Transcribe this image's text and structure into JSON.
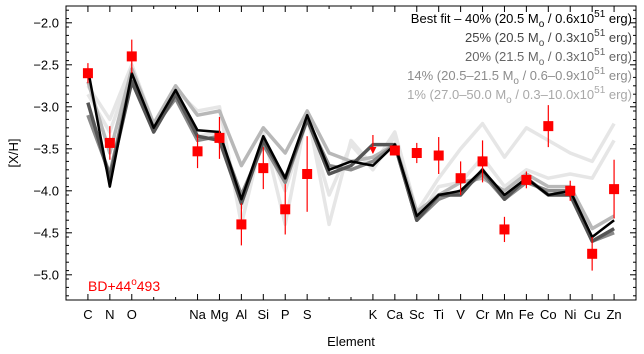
{
  "chart_data": {
    "type": "line",
    "xlabel": "Element",
    "ylabel": "[X/H]",
    "ylim": [
      -5.3,
      -1.8
    ],
    "yticks": [
      -2.0,
      -2.5,
      -3.0,
      -3.5,
      -4.0,
      -4.5,
      -5.0
    ],
    "ytick_labels": [
      "−2.0",
      "−2.5",
      "−3.0",
      "−3.5",
      "−4.0",
      "−4.5",
      "−5.0"
    ],
    "x_positions": [
      6,
      7,
      8,
      9,
      10,
      11,
      12,
      13,
      14,
      15,
      16,
      17,
      18,
      19,
      20,
      21,
      22,
      23,
      24,
      25,
      26,
      27,
      28,
      29,
      30
    ],
    "xlim": [
      5,
      31
    ],
    "elements": [
      {
        "label": "C",
        "z": 6
      },
      {
        "label": "N",
        "z": 7
      },
      {
        "label": "O",
        "z": 8
      },
      {
        "label": "Na",
        "z": 11
      },
      {
        "label": "Mg",
        "z": 12
      },
      {
        "label": "Al",
        "z": 13
      },
      {
        "label": "Si",
        "z": 14
      },
      {
        "label": "P",
        "z": 15
      },
      {
        "label": "S",
        "z": 16
      },
      {
        "label": "K",
        "z": 19
      },
      {
        "label": "Ca",
        "z": 20
      },
      {
        "label": "Sc",
        "z": 21
      },
      {
        "label": "Ti",
        "z": 22
      },
      {
        "label": "V",
        "z": 23
      },
      {
        "label": "Cr",
        "z": 24
      },
      {
        "label": "Mn",
        "z": 25
      },
      {
        "label": "Fe",
        "z": 26
      },
      {
        "label": "Co",
        "z": 27
      },
      {
        "label": "Ni",
        "z": 28
      },
      {
        "label": "Cu",
        "z": 29
      },
      {
        "label": "Zn",
        "z": 30
      }
    ],
    "observations": [
      {
        "z": 6,
        "y": -2.6,
        "err": 0.12,
        "upper_limit": false
      },
      {
        "z": 7,
        "y": -3.43,
        "err": 0.2,
        "upper_limit": false
      },
      {
        "z": 8,
        "y": -2.4,
        "err": 0.2,
        "upper_limit": false
      },
      {
        "z": 11,
        "y": -3.53,
        "err": 0.2,
        "upper_limit": false
      },
      {
        "z": 12,
        "y": -3.37,
        "err": 0.25,
        "upper_limit": false
      },
      {
        "z": 13,
        "y": -4.4,
        "err": 0.25,
        "upper_limit": false
      },
      {
        "z": 14,
        "y": -3.73,
        "err": 0.25,
        "upper_limit": false
      },
      {
        "z": 15,
        "y": -4.22,
        "err": 0.3,
        "upper_limit": false
      },
      {
        "z": 16,
        "y": -3.8,
        "err": 0.45,
        "upper_limit": false
      },
      {
        "z": 19,
        "y": -3.55,
        "err": 0.0,
        "upper_limit": true
      },
      {
        "z": 20,
        "y": -3.52,
        "err": 0.05,
        "upper_limit": false
      },
      {
        "z": 21,
        "y": -3.55,
        "err": 0.12,
        "upper_limit": false
      },
      {
        "z": 22,
        "y": -3.58,
        "err": 0.22,
        "upper_limit": false
      },
      {
        "z": 23,
        "y": -3.85,
        "err": 0.2,
        "upper_limit": false
      },
      {
        "z": 24,
        "y": -3.65,
        "err": 0.25,
        "upper_limit": false
      },
      {
        "z": 25,
        "y": -4.46,
        "err": 0.15,
        "upper_limit": false
      },
      {
        "z": 26,
        "y": -3.87,
        "err": 0.1,
        "upper_limit": false
      },
      {
        "z": 27,
        "y": -3.23,
        "err": 0.25,
        "upper_limit": false
      },
      {
        "z": 28,
        "y": -4.0,
        "err": 0.12,
        "upper_limit": false
      },
      {
        "z": 29,
        "y": -4.75,
        "err": 0.2,
        "upper_limit": false
      },
      {
        "z": 30,
        "y": -3.98,
        "err": 0.35,
        "upper_limit": false
      }
    ],
    "series": [
      {
        "name": "1% (27.0–50.0 Mₒ / 0.3–10.0x10⁵¹ erg)",
        "color": "#e6e6e6",
        "width": 3.5,
        "x": [
          6,
          7,
          8,
          9,
          10,
          11,
          12,
          13,
          14,
          15,
          16,
          17,
          18,
          19,
          20,
          21,
          22,
          23,
          24,
          25,
          26,
          27,
          28,
          29,
          30
        ],
        "values": [
          -2.75,
          -3.15,
          -2.5,
          -3.2,
          -2.8,
          -3.05,
          -3.0,
          -4.4,
          -3.3,
          -4.4,
          -3.05,
          -4.4,
          -3.4,
          -3.7,
          -3.3,
          -4.25,
          -3.85,
          -3.5,
          -3.2,
          -3.6,
          -3.25,
          -3.4,
          -3.55,
          -3.65,
          -3.2
        ]
      },
      {
        "name": "1% (27.0–50.0 Mₒ / 0.3–10.0x10⁵¹ erg)",
        "color": "#e6e6e6",
        "width": 3.5,
        "x": [
          6,
          7,
          8,
          9,
          10,
          11,
          12,
          13,
          14,
          15,
          16,
          17,
          18,
          19,
          20,
          21,
          22,
          23,
          24,
          25,
          26,
          27,
          28,
          29,
          30
        ],
        "values": [
          -2.85,
          -3.3,
          -2.55,
          -3.25,
          -2.85,
          -3.35,
          -3.3,
          -4.2,
          -3.35,
          -4.0,
          -3.15,
          -4.05,
          -3.45,
          -3.75,
          -3.35,
          -4.35,
          -3.95,
          -3.9,
          -3.6,
          -3.95,
          -3.75,
          -3.85,
          -3.8,
          -3.85,
          -3.4
        ]
      },
      {
        "name": "14% (20.5–21.5 Mₒ / 0.6–0.9x10⁵¹ erg)",
        "color": "#b8b8b8",
        "width": 3.5,
        "x": [
          6,
          7,
          8,
          9,
          10,
          11,
          12,
          13,
          14,
          15,
          16,
          17,
          18,
          19,
          20,
          21,
          22,
          23,
          24,
          25,
          26,
          27,
          28,
          29,
          30
        ],
        "values": [
          -2.7,
          -3.55,
          -2.55,
          -3.2,
          -2.75,
          -3.1,
          -3.05,
          -3.7,
          -3.25,
          -3.55,
          -3.05,
          -3.55,
          -3.65,
          -3.6,
          -3.45,
          -4.25,
          -4.05,
          -3.9,
          -3.85,
          -4.0,
          -3.8,
          -3.95,
          -3.95,
          -4.45,
          -4.3
        ]
      },
      {
        "name": "20% (21.5 Mₒ / 0.3x10⁵¹ erg)",
        "color": "#8a8a8a",
        "width": 3.5,
        "x": [
          6,
          7,
          8,
          9,
          10,
          11,
          12,
          13,
          14,
          15,
          16,
          17,
          18,
          19,
          20,
          21,
          22,
          23,
          24,
          25,
          26,
          27,
          28,
          29,
          30
        ],
        "values": [
          -3.1,
          -3.8,
          -2.65,
          -3.25,
          -2.9,
          -3.4,
          -3.35,
          -4.05,
          -3.45,
          -3.9,
          -3.15,
          -3.7,
          -3.75,
          -3.65,
          -3.45,
          -4.35,
          -4.1,
          -4.0,
          -3.8,
          -4.1,
          -3.9,
          -4.0,
          -4.0,
          -4.6,
          -4.5
        ]
      },
      {
        "name": "25% (20.5 Mₒ / 0.3x10⁵¹ erg)",
        "color": "#555555",
        "width": 3.5,
        "x": [
          6,
          7,
          8,
          9,
          10,
          11,
          12,
          13,
          14,
          15,
          16,
          17,
          18,
          19,
          20,
          21,
          22,
          23,
          24,
          25,
          26,
          27,
          28,
          29,
          30
        ],
        "values": [
          -2.95,
          -3.85,
          -2.7,
          -3.3,
          -2.85,
          -3.35,
          -3.4,
          -4.15,
          -3.4,
          -3.85,
          -3.15,
          -3.8,
          -3.7,
          -3.45,
          -3.45,
          -4.35,
          -4.05,
          -4.05,
          -3.75,
          -4.1,
          -3.85,
          -4.05,
          -4.05,
          -4.6,
          -4.45
        ]
      },
      {
        "name": "Best fit – 40% (20.5 Mₒ / 0.6x10⁵¹ erg)",
        "color": "#000000",
        "width": 2.5,
        "x": [
          6,
          7,
          8,
          9,
          10,
          11,
          12,
          13,
          14,
          15,
          16,
          17,
          18,
          19,
          20,
          21,
          22,
          23,
          24,
          25,
          26,
          27,
          28,
          29,
          30
        ],
        "values": [
          -2.55,
          -3.95,
          -2.6,
          -3.25,
          -2.8,
          -3.28,
          -3.3,
          -4.1,
          -3.35,
          -3.85,
          -3.1,
          -3.75,
          -3.65,
          -3.7,
          -3.45,
          -4.3,
          -4.05,
          -4.0,
          -3.75,
          -4.05,
          -3.85,
          -4.05,
          -4.0,
          -4.55,
          -4.35
        ]
      }
    ],
    "legend": {
      "placement": "top-right",
      "entries": [
        {
          "prefix": "Best fit – 40% (20.5 M",
          "sub": "o",
          "mid": " / 0.6x10",
          "sup": "51",
          "suffix": " erg)",
          "color": "#000000"
        },
        {
          "prefix": "25% (20.5 M",
          "sub": "o",
          "mid": " / 0.3x10",
          "sup": "51",
          "suffix": " erg)",
          "color": "#444444"
        },
        {
          "prefix": "20% (21.5 M",
          "sub": "o",
          "mid": " / 0.3x10",
          "sup": "51",
          "suffix": " erg)",
          "color": "#666666"
        },
        {
          "prefix": "14% (20.5–21.5 M",
          "sub": "o",
          "mid": " / 0.6–0.9x10",
          "sup": "51",
          "suffix": " erg)",
          "color": "#8c8c8c"
        },
        {
          "prefix": "1% (27.0–50.0 M",
          "sub": "o",
          "mid": " / 0.3–10.0x10",
          "sup": "51",
          "suffix": " erg)",
          "color": "#a8a8a8"
        }
      ]
    },
    "annotation": {
      "prefix": "BD+44",
      "sup": "o",
      "suffix": "493",
      "color": "#ff0000"
    },
    "marker_color": "#ff0000",
    "grid": false
  }
}
